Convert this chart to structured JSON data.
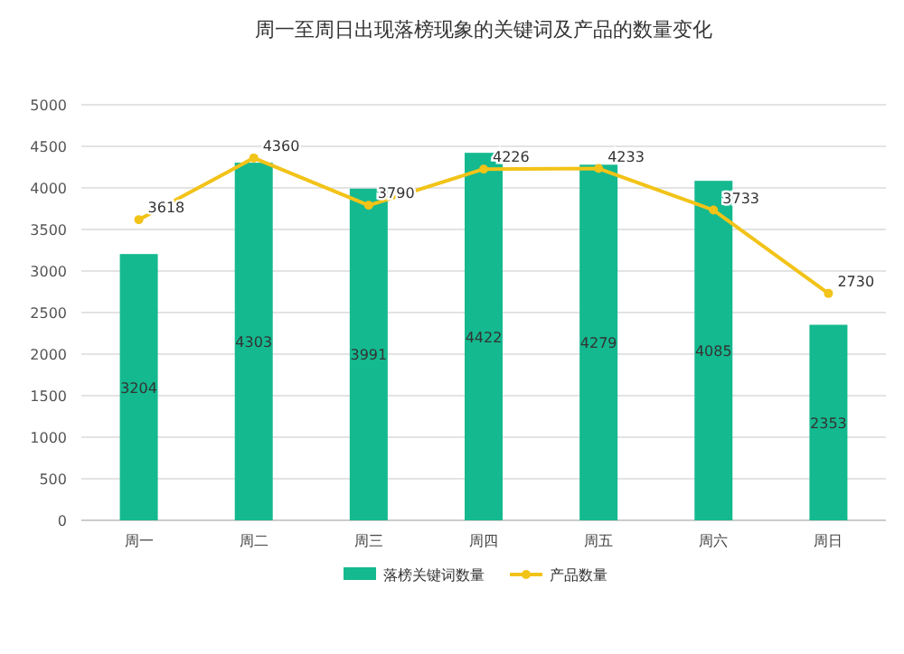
{
  "chart_data": {
    "type": "bar",
    "title": "周一至周日出现落榜现象的关键词及产品的数量变化",
    "categories": [
      "周一",
      "周二",
      "周三",
      "周四",
      "周五",
      "周六",
      "周日"
    ],
    "series": [
      {
        "name": "落榜关键词数量",
        "color": "#14b98f",
        "values": [
          3204,
          4303,
          3991,
          4422,
          4279,
          4085,
          2353
        ],
        "value_labels": [
          "3204",
          "4303",
          "3991",
          "4422",
          "4279",
          "4085",
          "2353"
        ]
      },
      {
        "name": "产品数量",
        "type": "line",
        "color": "#f2c318",
        "values": [
          3618,
          4360,
          3790,
          4226,
          4233,
          3733,
          2730
        ],
        "value_labels": [
          "3618",
          "4360",
          "3790",
          "4226",
          "4233",
          "3733",
          "2730"
        ],
        "marker": "circle"
      }
    ],
    "ylim": [
      0,
      5000
    ],
    "yticks": [
      0,
      500,
      1000,
      1500,
      2000,
      2500,
      3000,
      3500,
      4000,
      4500,
      5000
    ],
    "grid": "y",
    "legend": "bottom"
  }
}
